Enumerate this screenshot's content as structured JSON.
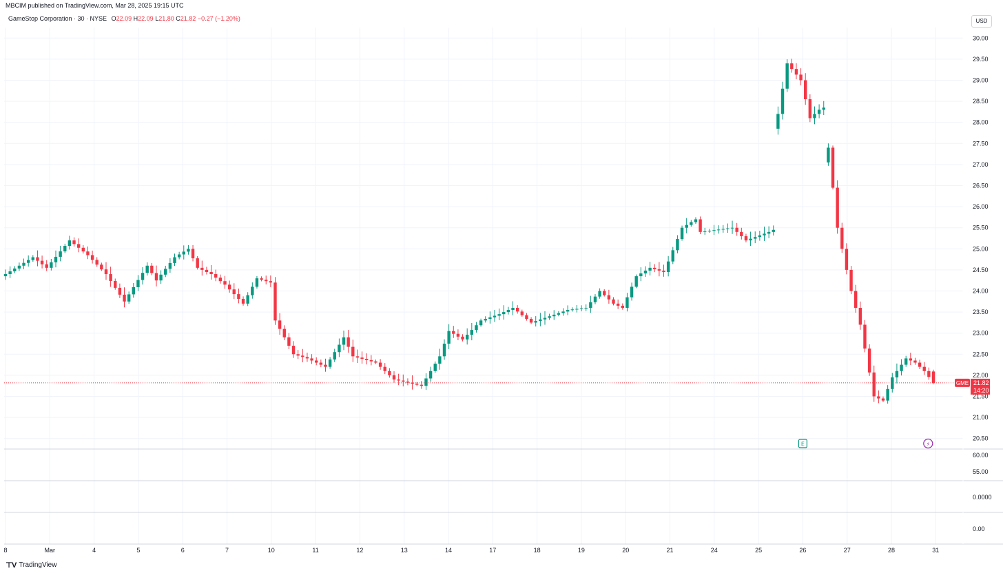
{
  "publisher_line": "MBCIM published on TradingView.com, Mar 28, 2025 19:15 UTC",
  "legend": {
    "symbol": "GameStop Corporation · 30 · NYSE",
    "o_label": "O",
    "o_value": "22.09",
    "h_label": "H",
    "h_value": "22.09",
    "l_label": "L",
    "l_value": "21.80",
    "c_label": "C",
    "c_value": "21.82",
    "change": "−0.27 (−1.20%)"
  },
  "currency_button": "USD",
  "brand": "TradingView",
  "price_badge": {
    "ticker": "GME",
    "price": "21.82",
    "countdown": "14:20"
  },
  "event_markers": [
    {
      "glyph": "E",
      "x_label": "26",
      "name": "earnings"
    },
    {
      "glyph": "⚡",
      "x_label": "31",
      "name": "split-dividend"
    }
  ],
  "colors": {
    "up": "#089981",
    "down": "#f23645",
    "grid": "#f0f3fa",
    "last_price_line": "#f23645",
    "event_purple": "#9c27b0"
  },
  "chart_data": {
    "type": "candlestick",
    "ylim": [
      20.25,
      30.25
    ],
    "y_ticks": [
      "30.00",
      "29.50",
      "29.00",
      "28.50",
      "28.00",
      "27.50",
      "27.00",
      "26.50",
      "26.00",
      "25.50",
      "25.00",
      "24.50",
      "24.00",
      "23.50",
      "23.00",
      "22.50",
      "22.00",
      "21.50",
      "21.00",
      "20.50"
    ],
    "x_ticks": [
      "8",
      "Mar",
      "4",
      "5",
      "6",
      "7",
      "10",
      "11",
      "12",
      "13",
      "14",
      "17",
      "18",
      "19",
      "20",
      "21",
      "24",
      "25",
      "26",
      "27",
      "28",
      "31"
    ],
    "last_price": 21.82,
    "anchors": [
      [
        0,
        24.4
      ],
      [
        6,
        24.8
      ],
      [
        9,
        24.55
      ],
      [
        14,
        25.2
      ],
      [
        18,
        24.85
      ],
      [
        22,
        24.4
      ],
      [
        26,
        23.75
      ],
      [
        31,
        24.6
      ],
      [
        33,
        24.25
      ],
      [
        37,
        24.8
      ],
      [
        40,
        25.0
      ],
      [
        42,
        24.55
      ],
      [
        45,
        24.4
      ],
      [
        48,
        24.15
      ],
      [
        52,
        23.7
      ],
      [
        55,
        24.3
      ],
      [
        58,
        24.2
      ],
      [
        59,
        23.3
      ],
      [
        63,
        22.5
      ],
      [
        66,
        22.4
      ],
      [
        70,
        22.2
      ],
      [
        74,
        22.9
      ],
      [
        76,
        22.45
      ],
      [
        81,
        22.3
      ],
      [
        85,
        21.9
      ],
      [
        91,
        21.75
      ],
      [
        95,
        22.45
      ],
      [
        97,
        23.05
      ],
      [
        100,
        22.85
      ],
      [
        104,
        23.3
      ],
      [
        108,
        23.45
      ],
      [
        111,
        23.6
      ],
      [
        115,
        23.25
      ],
      [
        119,
        23.4
      ],
      [
        123,
        23.55
      ],
      [
        127,
        23.6
      ],
      [
        130,
        24.0
      ],
      [
        133,
        23.7
      ],
      [
        135,
        23.6
      ],
      [
        138,
        24.35
      ],
      [
        141,
        24.55
      ],
      [
        144,
        24.45
      ],
      [
        145,
        24.7
      ],
      [
        148,
        25.5
      ],
      [
        151,
        25.7
      ],
      [
        152,
        25.4
      ],
      [
        159,
        25.5
      ],
      [
        162,
        25.2
      ],
      [
        167,
        25.4
      ],
      [
        168,
        25.45
      ],
      [
        169,
        28.2
      ],
      [
        171,
        29.4
      ],
      [
        174,
        29.0
      ],
      [
        176,
        28.1
      ],
      [
        178,
        28.3
      ],
      [
        179,
        28.35
      ],
      [
        182,
        25.5
      ],
      [
        185,
        24.0
      ],
      [
        187,
        23.2
      ],
      [
        190,
        21.5
      ],
      [
        192,
        21.4
      ],
      [
        194,
        21.95
      ],
      [
        197,
        22.4
      ],
      [
        199,
        22.3
      ],
      [
        201,
        22.1
      ],
      [
        203,
        21.82
      ]
    ]
  }
}
